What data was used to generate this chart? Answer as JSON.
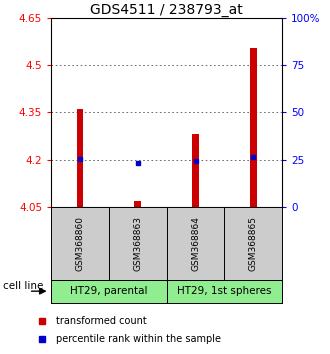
{
  "title": "GDS4511 / 238793_at",
  "samples": [
    "GSM368860",
    "GSM368863",
    "GSM368864",
    "GSM368865"
  ],
  "red_tops": [
    4.36,
    4.07,
    4.28,
    4.555
  ],
  "red_bottoms": [
    4.05,
    4.05,
    4.05,
    4.05
  ],
  "blue_values": [
    4.203,
    4.191,
    4.197,
    4.208
  ],
  "ylim": [
    4.05,
    4.65
  ],
  "yticks_left": [
    4.05,
    4.2,
    4.35,
    4.5,
    4.65
  ],
  "ytick_labels_left": [
    "4.05",
    "4.2",
    "4.35",
    "4.5",
    "4.65"
  ],
  "yticks_right": [
    0,
    25,
    50,
    75,
    100
  ],
  "ytick_labels_right": [
    "0",
    "25",
    "50",
    "75",
    "100%"
  ],
  "group1_label": "HT29, parental",
  "group2_label": "HT29, 1st spheres",
  "cell_line_label": "cell line",
  "legend_red": "transformed count",
  "legend_blue": "percentile rank within the sample",
  "bar_color": "#cc0000",
  "point_color": "#0000cc",
  "sample_box_color": "#cccccc",
  "group_box_color": "#90ee90",
  "dotted_line_color": "#555555",
  "title_fontsize": 10,
  "tick_fontsize": 7.5,
  "sample_fontsize": 6.5,
  "group_fontsize": 7.5,
  "legend_fontsize": 7,
  "bar_width": 0.12
}
